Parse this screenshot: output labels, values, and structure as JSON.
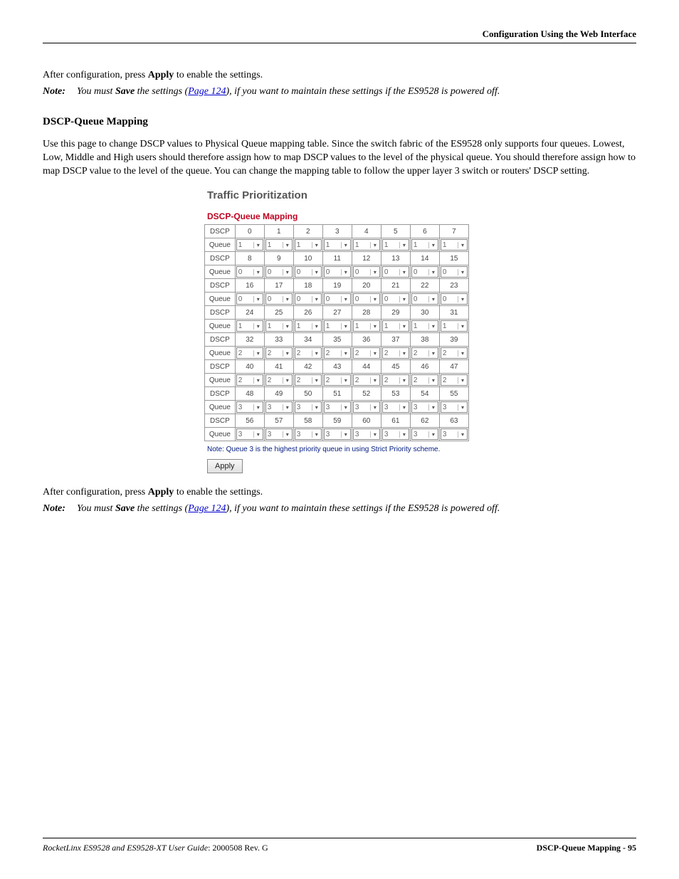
{
  "header": {
    "title": "Configuration Using the Web Interface"
  },
  "intro1": {
    "before": "After configuration, press ",
    "apply": "Apply",
    "after": " to enable the settings."
  },
  "note1": {
    "label": "Note:",
    "p1": "You must ",
    "save": "Save",
    "p2": " the settings (",
    "link": "Page 124",
    "p3": "), if you want to maintain these settings if the ES9528 is powered off."
  },
  "section": {
    "heading": "DSCP-Queue Mapping",
    "para": "Use this page to change DSCP values to Physical Queue mapping table. Since the switch fabric of the ES9528 only supports four queues. Lowest, Low, Middle and High users should therefore assign how to map DSCP values to the level of the physical queue. You should therefore assign how to map DSCP value to the level of the queue. You can change the mapping table to follow the upper layer 3 switch or routers' DSCP setting."
  },
  "ui": {
    "traffic_title": "Traffic Prioritization",
    "dscp_title": "DSCP-Queue Mapping",
    "row_label_dscp": "DSCP",
    "row_label_queue": "Queue",
    "groups": [
      {
        "dscp": [
          "0",
          "1",
          "2",
          "3",
          "4",
          "5",
          "6",
          "7"
        ],
        "queue": [
          "1",
          "1",
          "1",
          "1",
          "1",
          "1",
          "1",
          "1"
        ]
      },
      {
        "dscp": [
          "8",
          "9",
          "10",
          "11",
          "12",
          "13",
          "14",
          "15"
        ],
        "queue": [
          "0",
          "0",
          "0",
          "0",
          "0",
          "0",
          "0",
          "0"
        ]
      },
      {
        "dscp": [
          "16",
          "17",
          "18",
          "19",
          "20",
          "21",
          "22",
          "23"
        ],
        "queue": [
          "0",
          "0",
          "0",
          "0",
          "0",
          "0",
          "0",
          "0"
        ]
      },
      {
        "dscp": [
          "24",
          "25",
          "26",
          "27",
          "28",
          "29",
          "30",
          "31"
        ],
        "queue": [
          "1",
          "1",
          "1",
          "1",
          "1",
          "1",
          "1",
          "1"
        ]
      },
      {
        "dscp": [
          "32",
          "33",
          "34",
          "35",
          "36",
          "37",
          "38",
          "39"
        ],
        "queue": [
          "2",
          "2",
          "2",
          "2",
          "2",
          "2",
          "2",
          "2"
        ]
      },
      {
        "dscp": [
          "40",
          "41",
          "42",
          "43",
          "44",
          "45",
          "46",
          "47"
        ],
        "queue": [
          "2",
          "2",
          "2",
          "2",
          "2",
          "2",
          "2",
          "2"
        ]
      },
      {
        "dscp": [
          "48",
          "49",
          "50",
          "51",
          "52",
          "53",
          "54",
          "55"
        ],
        "queue": [
          "3",
          "3",
          "3",
          "3",
          "3",
          "3",
          "3",
          "3"
        ]
      },
      {
        "dscp": [
          "56",
          "57",
          "58",
          "59",
          "60",
          "61",
          "62",
          "63"
        ],
        "queue": [
          "3",
          "3",
          "3",
          "3",
          "3",
          "3",
          "3",
          "3"
        ]
      }
    ],
    "table_note": "Note: Queue 3 is the highest priority queue in using Strict Priority scheme.",
    "apply_label": "Apply"
  },
  "outro": {
    "before": "After configuration, press ",
    "apply": "Apply",
    "after": " to enable the settings."
  },
  "note2": {
    "label": "Note:",
    "p1": "You must ",
    "save": "Save",
    "p2": " the settings (",
    "link": "Page 124",
    "p3": "), if you want to maintain these settings if the ES9528 is powered off."
  },
  "footer": {
    "left_italic": "RocketLinx ES9528 and ES9528-XT User Guide",
    "left_plain": ": 2000508 Rev. G",
    "right": "DSCP-Queue Mapping - 95"
  }
}
